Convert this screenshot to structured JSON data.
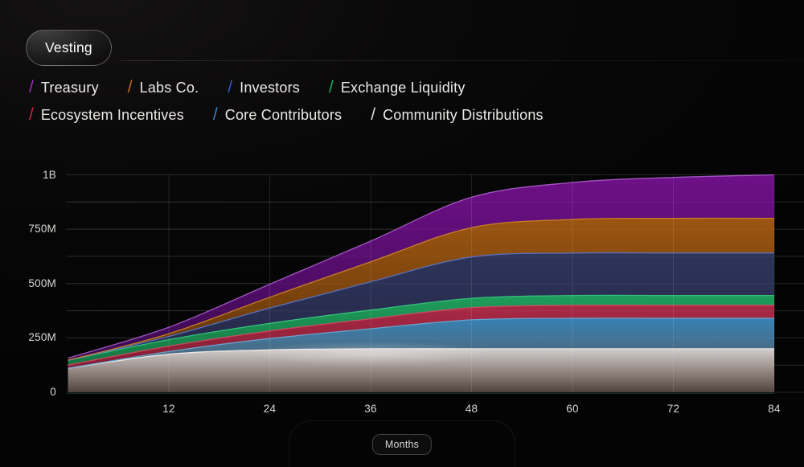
{
  "header": {
    "title": "Vesting"
  },
  "legend": {
    "rows": [
      [
        {
          "name": "Treasury",
          "color": "#a32cc8"
        },
        {
          "name": "Labs Co.",
          "color": "#c2690e"
        },
        {
          "name": "Investors",
          "color": "#2e55e0"
        },
        {
          "name": "Exchange Liquidity",
          "color": "#1ca95c"
        }
      ],
      [
        {
          "name": "Ecosystem Incentives",
          "color": "#cf2440"
        },
        {
          "name": "Core Contributors",
          "color": "#3c80c8"
        },
        {
          "name": "Community Distributions",
          "color": "#dad7d4"
        }
      ]
    ]
  },
  "chart_data": {
    "type": "area",
    "stacked": true,
    "title": "Vesting",
    "xlabel": "Months",
    "ylabel": "",
    "x": [
      0,
      12,
      24,
      36,
      48,
      60,
      72,
      84
    ],
    "x_ticks": [
      12,
      24,
      36,
      48,
      60,
      72,
      84
    ],
    "xlim": [
      0,
      84
    ],
    "ylim": [
      0,
      1000
    ],
    "y_unit": "M",
    "y_ticks": [
      {
        "value": 0,
        "label": "0"
      },
      {
        "value": 250,
        "label": "250M"
      },
      {
        "value": 500,
        "label": "500M"
      },
      {
        "value": 750,
        "label": "750M"
      },
      {
        "value": 1000,
        "label": "1B"
      }
    ],
    "y_minor_step": 125,
    "grid": true,
    "legend_position": "top-left",
    "series": [
      {
        "name": "Community Distributions",
        "stack_order": 1,
        "values": [
          110,
          175,
          195,
          200,
          200,
          200,
          200,
          200
        ],
        "fill_top": "#d2cecd",
        "fill_mid": "#8e827d",
        "fill_bottom": "#4e433d",
        "stroke": "#eeebe9"
      },
      {
        "name": "Core Contributors",
        "stack_order": 2,
        "values": [
          0,
          12,
          52,
          92,
          133,
          140,
          140,
          140
        ],
        "fill_top": "#3781b4",
        "fill_bottom": "#53616c",
        "stroke": "#6ba6d2"
      },
      {
        "name": "Ecosystem Incentives",
        "stack_order": 3,
        "values": [
          15,
          25,
          35,
          46,
          56,
          60,
          60,
          60
        ],
        "fill_top": "#a92946",
        "fill_bottom": "#821e33",
        "stroke": "#cf4a62"
      },
      {
        "name": "Exchange Liquidity",
        "stack_order": 4,
        "values": [
          22,
          30,
          35,
          40,
          43,
          45,
          45,
          45
        ],
        "fill_top": "#1f9d5a",
        "fill_bottom": "#147742",
        "stroke": "#37c47e"
      },
      {
        "name": "Investors",
        "stack_order": 5,
        "values": [
          0,
          15,
          70,
          130,
          190,
          195,
          195,
          195
        ],
        "fill_top": "#2e3459",
        "fill_bottom": "#242949",
        "stroke": "#5a73c4"
      },
      {
        "name": "Labs Co.",
        "stack_order": 6,
        "values": [
          0,
          12,
          50,
          92,
          135,
          155,
          160,
          160
        ],
        "fill_top": "#9b5510",
        "fill_bottom": "#5f340b",
        "stroke": "#cd8326"
      },
      {
        "name": "Treasury",
        "stack_order": 7,
        "values": [
          10,
          30,
          60,
          95,
          140,
          170,
          188,
          200
        ],
        "fill_top": "#6f1089",
        "fill_bottom": "#3a0a4e",
        "stroke": "#a55cc6"
      }
    ]
  }
}
